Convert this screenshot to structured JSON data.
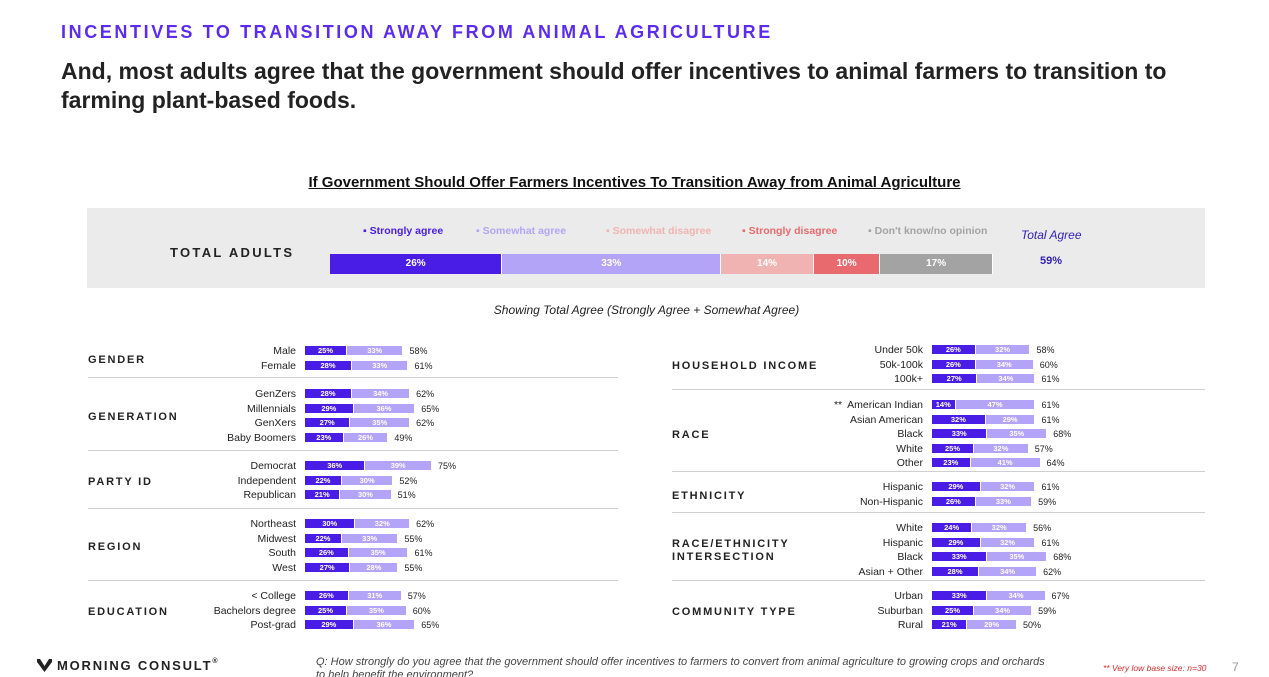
{
  "header": {
    "kicker": "INCENTIVES TO TRANSITION AWAY FROM ANIMAL AGRICULTURE",
    "headline": "And, most adults agree that the government should offer incentives to animal farmers to transition to farming plant-based foods."
  },
  "colors": {
    "strongly_agree": "#4a1de6",
    "somewhat_agree": "#b3a4f7",
    "somewhat_disagree": "#f1b3b1",
    "strongly_disagree": "#e96a6e",
    "dont_know": "#a3a3a3",
    "accent": "#5b2cf0",
    "total_agree_text": "#2d1fb5",
    "footnote_red": "#d92b2b"
  },
  "chart_data": [
    {
      "type": "bar",
      "orientation": "horizontal-stacked",
      "title": "If Government Should Offer Farmers Incentives To Transition Away from Animal Agriculture",
      "row_label": "TOTAL ADULTS",
      "legend_position": "top",
      "series": [
        {
          "name": "Strongly agree",
          "value": 26,
          "label": "26%",
          "color": "#4a1de6",
          "legend_text": "Strongly agree"
        },
        {
          "name": "Somewhat agree",
          "value": 33,
          "label": "33%",
          "color": "#b3a4f7",
          "legend_text": "Somewhat agree"
        },
        {
          "name": "Somewhat disagree",
          "value": 14,
          "label": "14%",
          "color": "#f1b3b1",
          "legend_text": "Somewhat disagree"
        },
        {
          "name": "Strongly disagree",
          "value": 10,
          "label": "10%",
          "color": "#e96a6e",
          "legend_text": "Strongly disagree"
        },
        {
          "name": "Don't know/no opinion",
          "value": 17,
          "label": "17%",
          "color": "#a3a3a3",
          "legend_text": "Don't know/no opinion"
        }
      ],
      "total_agree_label": "Total Agree",
      "total_agree_value": "59%"
    },
    {
      "type": "bar",
      "orientation": "horizontal-stacked",
      "subtitle": "Showing Total Agree (Strongly Agree + Somewhat Agree)",
      "groups": [
        {
          "label": "GENDER",
          "rows": [
            {
              "label": "Male",
              "strongly": 25,
              "somewhat": 33,
              "total": "58%"
            },
            {
              "label": "Female",
              "strongly": 28,
              "somewhat": 33,
              "total": "61%"
            }
          ]
        },
        {
          "label": "GENERATION",
          "rows": [
            {
              "label": "GenZers",
              "strongly": 28,
              "somewhat": 34,
              "total": "62%"
            },
            {
              "label": "Millennials",
              "strongly": 29,
              "somewhat": 36,
              "total": "65%"
            },
            {
              "label": "GenXers",
              "strongly": 27,
              "somewhat": 35,
              "total": "62%"
            },
            {
              "label": "Baby Boomers",
              "strongly": 23,
              "somewhat": 26,
              "total": "49%"
            }
          ]
        },
        {
          "label": "PARTY ID",
          "rows": [
            {
              "label": "Democrat",
              "strongly": 36,
              "somewhat": 39,
              "total": "75%"
            },
            {
              "label": "Independent",
              "strongly": 22,
              "somewhat": 30,
              "total": "52%"
            },
            {
              "label": "Republican",
              "strongly": 21,
              "somewhat": 30,
              "total": "51%"
            }
          ]
        },
        {
          "label": "REGION",
          "rows": [
            {
              "label": "Northeast",
              "strongly": 30,
              "somewhat": 32,
              "total": "62%"
            },
            {
              "label": "Midwest",
              "strongly": 22,
              "somewhat": 33,
              "total": "55%"
            },
            {
              "label": "South",
              "strongly": 26,
              "somewhat": 35,
              "total": "61%"
            },
            {
              "label": "West",
              "strongly": 27,
              "somewhat": 28,
              "total": "55%"
            }
          ]
        },
        {
          "label": "EDUCATION",
          "rows": [
            {
              "label": "< College",
              "strongly": 26,
              "somewhat": 31,
              "total": "57%"
            },
            {
              "label": "Bachelors degree",
              "strongly": 25,
              "somewhat": 35,
              "total": "60%"
            },
            {
              "label": "Post-grad",
              "strongly": 29,
              "somewhat": 36,
              "total": "65%"
            }
          ]
        },
        {
          "label": "HOUSEHOLD INCOME",
          "rows": [
            {
              "label": "Under 50k",
              "strongly": 26,
              "somewhat": 32,
              "total": "58%"
            },
            {
              "label": "50k-100k",
              "strongly": 26,
              "somewhat": 34,
              "total": "60%"
            },
            {
              "label": "100k+",
              "strongly": 27,
              "somewhat": 34,
              "total": "61%"
            }
          ]
        },
        {
          "label": "RACE",
          "rows": [
            {
              "label": "American Indian",
              "marker": "**",
              "strongly": 14,
              "somewhat": 47,
              "total": "61%"
            },
            {
              "label": "Asian American",
              "strongly": 32,
              "somewhat": 29,
              "total": "61%"
            },
            {
              "label": "Black",
              "strongly": 33,
              "somewhat": 35,
              "total": "68%"
            },
            {
              "label": "White",
              "strongly": 25,
              "somewhat": 32,
              "total": "57%"
            },
            {
              "label": "Other",
              "strongly": 23,
              "somewhat": 41,
              "total": "64%"
            }
          ]
        },
        {
          "label": "ETHNICITY",
          "rows": [
            {
              "label": "Hispanic",
              "strongly": 29,
              "somewhat": 32,
              "total": "61%"
            },
            {
              "label": "Non-Hispanic",
              "strongly": 26,
              "somewhat": 33,
              "total": "59%"
            }
          ]
        },
        {
          "label": "RACE/ETHNICITY INTERSECTION",
          "rows": [
            {
              "label": "White",
              "strongly": 24,
              "somewhat": 32,
              "total": "56%"
            },
            {
              "label": "Hispanic",
              "strongly": 29,
              "somewhat": 32,
              "total": "61%"
            },
            {
              "label": "Black",
              "strongly": 33,
              "somewhat": 35,
              "total": "68%"
            },
            {
              "label": "Asian + Other",
              "strongly": 28,
              "somewhat": 34,
              "total": "62%"
            }
          ]
        },
        {
          "label": "COMMUNITY TYPE",
          "rows": [
            {
              "label": "Urban",
              "strongly": 33,
              "somewhat": 34,
              "total": "67%"
            },
            {
              "label": "Suburban",
              "strongly": 25,
              "somewhat": 34,
              "total": "59%"
            },
            {
              "label": "Rural",
              "strongly": 21,
              "somewhat": 29,
              "total": "50%"
            }
          ]
        }
      ]
    }
  ],
  "footer": {
    "logo_text": "MORNING CONSULT",
    "logo_mark": "®",
    "question": "Q:  How strongly do you agree that the government should offer incentives to farmers to convert from animal agriculture to growing crops and orchards to help benefit the environment?",
    "footnote": "** Very low base size: n=30",
    "page_number": "7"
  }
}
